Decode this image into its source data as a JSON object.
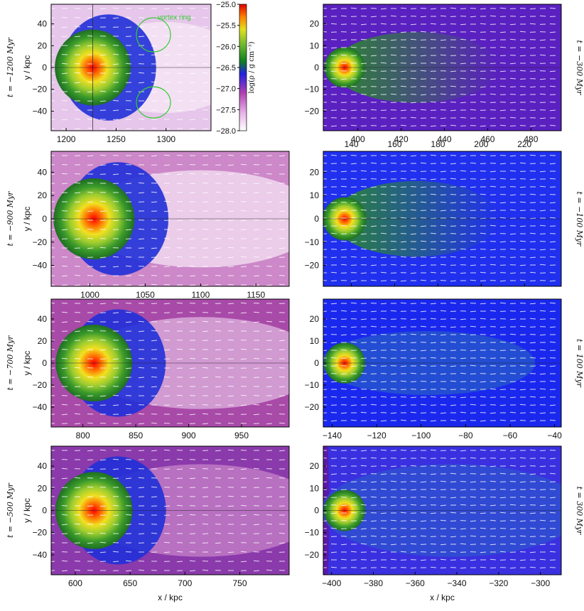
{
  "figure": {
    "colorbar": {
      "label": "log(ρ / g cm⁻³)",
      "ticks": [
        "-25.0",
        "-25.5",
        "-26.0",
        "-26.5",
        "-27.0",
        "-27.5",
        "-28.0"
      ],
      "range": [
        -28.0,
        -25.0
      ],
      "colors": [
        "#ffffff",
        "#e8b4e8",
        "#c050b8",
        "#8a10a0",
        "#2020e0",
        "#108020",
        "#60b030",
        "#e0e020",
        "#ff8000",
        "#e00000"
      ]
    },
    "axes_common": {
      "xlabel": "x / kpc",
      "ylabel": "y / kpc"
    },
    "annotation": {
      "text": "vortex ring",
      "color": "#33cc33"
    }
  },
  "chart_data": [
    {
      "type": "heatmap",
      "panel": "left-1",
      "time_label": "t = −1200 Myr",
      "x_ticks": [
        1200,
        1250,
        1300
      ],
      "xlim": [
        1185,
        1345
      ],
      "y_ticks": [
        40,
        20,
        0,
        -20,
        -40
      ],
      "ylim": [
        -58,
        58
      ],
      "background": "#e6c6ea",
      "wake_color": "#f4e4f4",
      "wake": "rings"
    },
    {
      "type": "heatmap",
      "panel": "right-1",
      "time_label": "t = −300 Myr",
      "x_ticks": [
        400,
        420,
        440,
        460,
        480
      ],
      "xlim": [
        384,
        494
      ],
      "y_ticks": [
        20,
        10,
        0,
        -10,
        -20
      ],
      "ylim": [
        -29,
        29
      ],
      "background": "#5a20c0",
      "wake_color": "#2a6a30",
      "wake": "green-tail"
    },
    {
      "type": "heatmap",
      "panel": "left-2",
      "time_label": "t = −900 Myr",
      "x_ticks": [
        1000,
        1050,
        1100,
        1150
      ],
      "xlim": [
        965,
        1180
      ],
      "y_ticks": [
        40,
        20,
        0,
        -20,
        -40
      ],
      "ylim": [
        -58,
        58
      ],
      "background": "#cc88c8",
      "wake_color": "#f0d8ee",
      "wake": "bright"
    },
    {
      "type": "heatmap",
      "panel": "right-2",
      "time_label": "t = −100 Myr",
      "x_ticks": [
        140,
        160,
        180,
        200,
        220
      ],
      "xlim": [
        127,
        237
      ],
      "y_ticks": [
        20,
        10,
        0,
        -10,
        -20
      ],
      "ylim": [
        -29,
        29
      ],
      "background": "#2030ee",
      "wake_color": "#3a8a38",
      "wake": "green-tail"
    },
    {
      "type": "heatmap",
      "panel": "left-3",
      "time_label": "t = −700 Myr",
      "x_ticks": [
        800,
        850,
        900,
        950
      ],
      "xlim": [
        770,
        995
      ],
      "y_ticks": [
        40,
        20,
        0,
        -20,
        -40
      ],
      "ylim": [
        -58,
        58
      ],
      "background": "#a84aa8",
      "wake_color": "#d8a8d8",
      "wake": "soft"
    },
    {
      "type": "heatmap",
      "panel": "right-3",
      "time_label": "t = 100 Myr",
      "x_ticks": [
        -140,
        -120,
        -100,
        -80,
        -60,
        -40
      ],
      "xlim": [
        -144,
        -37
      ],
      "y_ticks": [
        20,
        10,
        0,
        -10,
        -20
      ],
      "ylim": [
        -29,
        29
      ],
      "background": "#1a28ee",
      "wake_color": "#2a66c0",
      "wake": "blue-tail"
    },
    {
      "type": "heatmap",
      "panel": "left-4",
      "time_label": "t = −500 Myr",
      "x_ticks": [
        600,
        650,
        700,
        750
      ],
      "xlim": [
        578,
        795
      ],
      "y_ticks": [
        40,
        20,
        0,
        -20,
        -40
      ],
      "ylim": [
        -58,
        58
      ],
      "background": "#8a3aaa",
      "wake_color": "#c07ac6",
      "wake": "soft"
    },
    {
      "type": "heatmap",
      "panel": "right-4",
      "time_label": "t = 300 Myr",
      "x_ticks": [
        -400,
        -380,
        -360,
        -340,
        -320,
        -300
      ],
      "xlim": [
        -404,
        -290
      ],
      "y_ticks": [
        20,
        10,
        0,
        -10,
        -20
      ],
      "ylim": [
        -29,
        29
      ],
      "background": "#3a30e0",
      "wake_color": "#2a60c8",
      "wake": "shock"
    }
  ]
}
